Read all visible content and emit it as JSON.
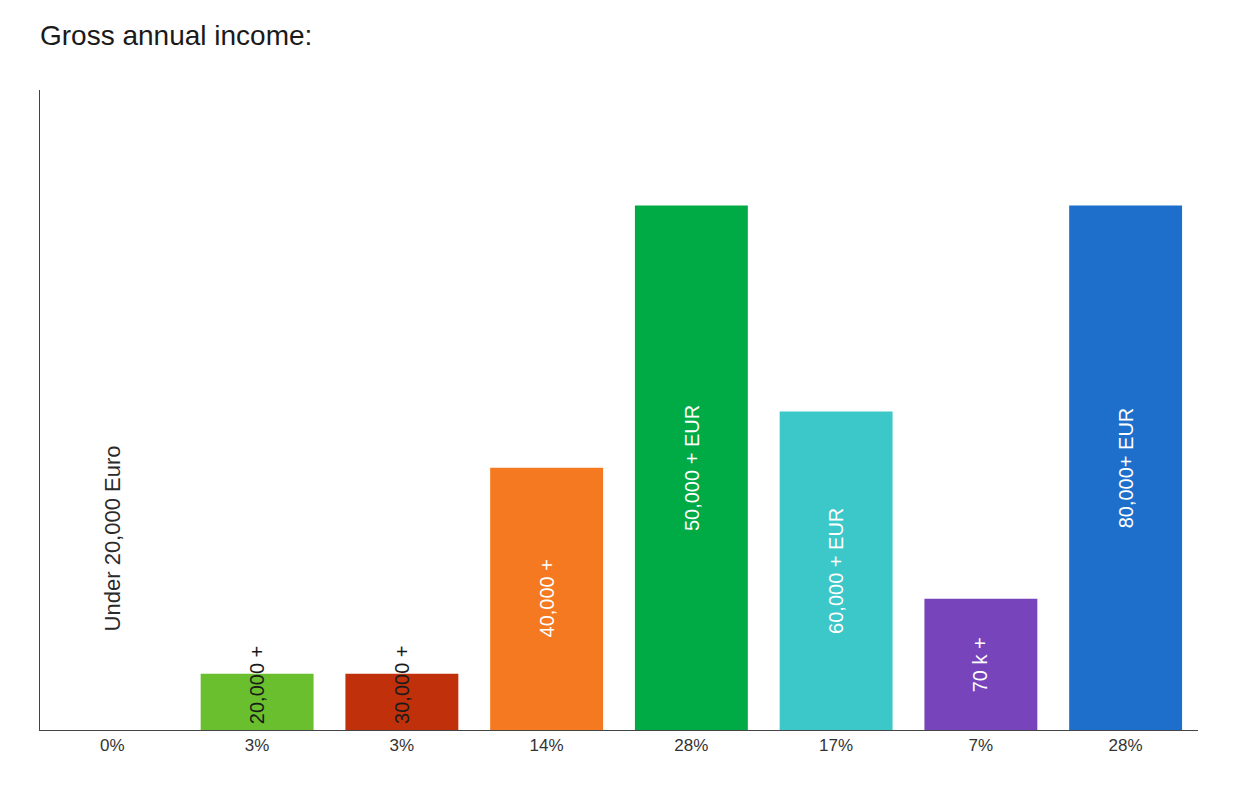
{
  "chart_data": {
    "type": "bar",
    "title": "Gross annual income:",
    "categories": [
      "Under 20,000 Euro",
      "20,000 +",
      "30,000 +",
      "40,000 +",
      "50,000 + EUR",
      "60,000 + EUR",
      "70 k +",
      "80,000+ EUR"
    ],
    "values": [
      0,
      3,
      3,
      14,
      28,
      17,
      7,
      28
    ],
    "value_labels": [
      "0%",
      "3%",
      "3%",
      "14%",
      "28%",
      "17%",
      "7%",
      "28%"
    ],
    "colors": [
      "#e0e0e0",
      "#6abf2e",
      "#c0300a",
      "#f47920",
      "#00aa44",
      "#3cc8c8",
      "#7744bb",
      "#1e6fcc"
    ],
    "ylim": [
      0,
      34.16
    ],
    "grid": false,
    "data_labels": true,
    "tick_labels": "x"
  }
}
